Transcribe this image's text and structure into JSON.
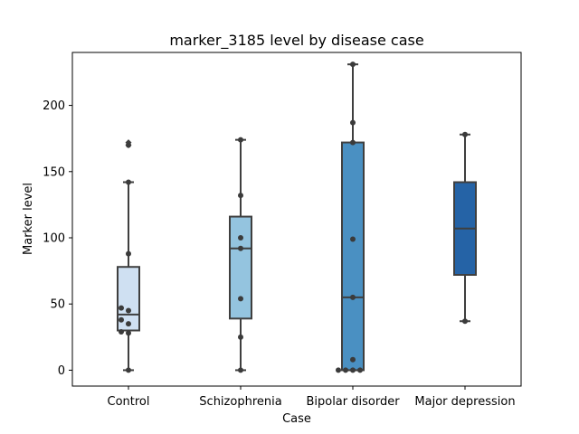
{
  "chart_data": {
    "type": "box",
    "title": "marker_3185 level by disease case",
    "xlabel": "Case",
    "ylabel": "Marker level",
    "ylim": [
      -12,
      240
    ],
    "yticks": [
      0,
      50,
      100,
      150,
      200
    ],
    "grid": false,
    "categories": [
      "Control",
      "Schizophrenia",
      "Bipolar disorder",
      "Major depression"
    ],
    "colors": [
      "#cfe0f2",
      "#94c4df",
      "#4a90c2",
      "#2563a6"
    ],
    "boxes": [
      {
        "whisker_low": 0,
        "q1": 30,
        "median": 42,
        "q3": 78,
        "whisker_high": 142,
        "outliers": [
          170,
          172
        ]
      },
      {
        "whisker_low": 0,
        "q1": 39,
        "median": 92,
        "q3": 116,
        "whisker_high": 174,
        "outliers": []
      },
      {
        "whisker_low": 0,
        "q1": 0,
        "median": 55,
        "q3": 172,
        "whisker_high": 231,
        "outliers": []
      },
      {
        "whisker_low": 37,
        "q1": 72,
        "median": 107,
        "q3": 142,
        "whisker_high": 178,
        "outliers": []
      }
    ],
    "points": [
      [
        0,
        28,
        29,
        35,
        38,
        45,
        47,
        88,
        142,
        170
      ],
      [
        0,
        25,
        54,
        92,
        100,
        132,
        174
      ],
      [
        0,
        0,
        0,
        0,
        8,
        55,
        99,
        172,
        187,
        231
      ],
      [
        37,
        178
      ]
    ]
  }
}
